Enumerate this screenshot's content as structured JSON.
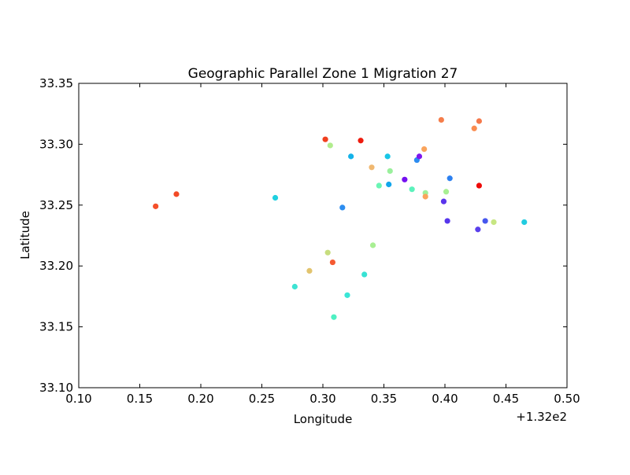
{
  "chart_data": {
    "type": "scatter",
    "title": "Geographic Parallel Zone 1 Migration 27",
    "xlabel": "Longitude",
    "ylabel": "Latitude",
    "x_offset_label": "+1.32e2",
    "xlim": [
      0.1,
      0.5
    ],
    "ylim": [
      33.1,
      33.35
    ],
    "xticks": [
      "0.10",
      "0.15",
      "0.20",
      "0.25",
      "0.30",
      "0.35",
      "0.40",
      "0.45",
      "0.50"
    ],
    "yticks": [
      "33.10",
      "33.15",
      "33.20",
      "33.25",
      "33.30",
      "33.35"
    ],
    "grid": false,
    "points": [
      {
        "x": 0.163,
        "y": 33.249,
        "color": "#f5502a"
      },
      {
        "x": 0.18,
        "y": 33.259,
        "color": "#f24a26"
      },
      {
        "x": 0.261,
        "y": 33.256,
        "color": "#1fd0e0"
      },
      {
        "x": 0.277,
        "y": 33.183,
        "color": "#3ee3d3"
      },
      {
        "x": 0.289,
        "y": 33.196,
        "color": "#e2c46e"
      },
      {
        "x": 0.302,
        "y": 33.304,
        "color": "#f0401f"
      },
      {
        "x": 0.304,
        "y": 33.211,
        "color": "#c7dd7e"
      },
      {
        "x": 0.306,
        "y": 33.299,
        "color": "#b1ec8d"
      },
      {
        "x": 0.308,
        "y": 33.203,
        "color": "#f55a32"
      },
      {
        "x": 0.309,
        "y": 33.158,
        "color": "#4ef0c2"
      },
      {
        "x": 0.316,
        "y": 33.248,
        "color": "#2c8df0"
      },
      {
        "x": 0.32,
        "y": 33.176,
        "color": "#3ae6d6"
      },
      {
        "x": 0.323,
        "y": 33.29,
        "color": "#14b2e9"
      },
      {
        "x": 0.331,
        "y": 33.303,
        "color": "#ee1b0e"
      },
      {
        "x": 0.334,
        "y": 33.193,
        "color": "#38e2d4"
      },
      {
        "x": 0.34,
        "y": 33.281,
        "color": "#f0b870"
      },
      {
        "x": 0.341,
        "y": 33.217,
        "color": "#a8ef93"
      },
      {
        "x": 0.346,
        "y": 33.266,
        "color": "#6af5b4"
      },
      {
        "x": 0.353,
        "y": 33.29,
        "color": "#18c6e6"
      },
      {
        "x": 0.354,
        "y": 33.267,
        "color": "#12a6ec"
      },
      {
        "x": 0.355,
        "y": 33.278,
        "color": "#9af09c"
      },
      {
        "x": 0.367,
        "y": 33.271,
        "color": "#7410f0"
      },
      {
        "x": 0.373,
        "y": 33.263,
        "color": "#5cf2bc"
      },
      {
        "x": 0.377,
        "y": 33.287,
        "color": "#2c8cf0"
      },
      {
        "x": 0.379,
        "y": 33.29,
        "color": "#7e16ee"
      },
      {
        "x": 0.383,
        "y": 33.296,
        "color": "#faa45c"
      },
      {
        "x": 0.384,
        "y": 33.26,
        "color": "#9ef09a"
      },
      {
        "x": 0.384,
        "y": 33.257,
        "color": "#faa45c"
      },
      {
        "x": 0.397,
        "y": 33.32,
        "color": "#f57d4a"
      },
      {
        "x": 0.399,
        "y": 33.253,
        "color": "#5a34ec"
      },
      {
        "x": 0.401,
        "y": 33.261,
        "color": "#a8ef93"
      },
      {
        "x": 0.402,
        "y": 33.237,
        "color": "#5636ec"
      },
      {
        "x": 0.404,
        "y": 33.272,
        "color": "#2c80f0"
      },
      {
        "x": 0.424,
        "y": 33.313,
        "color": "#fa8c50"
      },
      {
        "x": 0.427,
        "y": 33.23,
        "color": "#5a40ec"
      },
      {
        "x": 0.428,
        "y": 33.266,
        "color": "#ee0a08"
      },
      {
        "x": 0.428,
        "y": 33.319,
        "color": "#f5784a"
      },
      {
        "x": 0.433,
        "y": 33.237,
        "color": "#4656ee"
      },
      {
        "x": 0.44,
        "y": 33.236,
        "color": "#c7e682"
      },
      {
        "x": 0.465,
        "y": 33.236,
        "color": "#22cce0"
      }
    ]
  }
}
